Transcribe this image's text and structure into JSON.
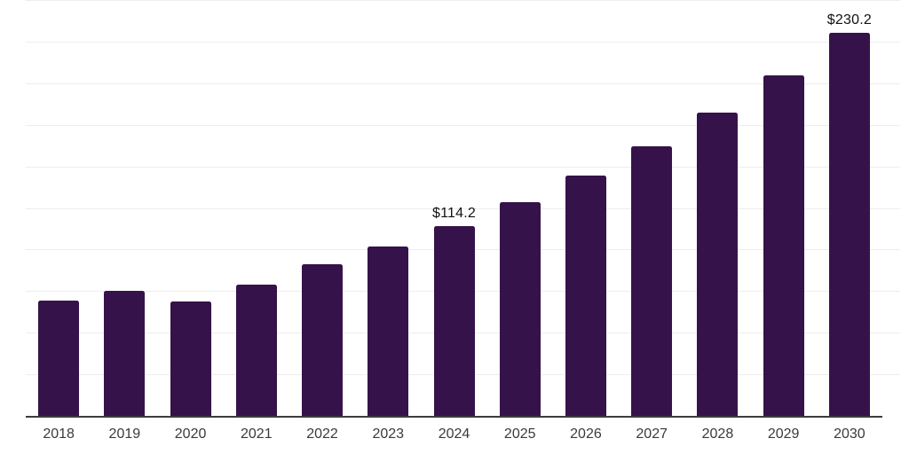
{
  "chart_data": {
    "type": "bar",
    "title": "",
    "xlabel": "",
    "ylabel": "",
    "categories": [
      "2018",
      "2019",
      "2020",
      "2021",
      "2022",
      "2023",
      "2024",
      "2025",
      "2026",
      "2027",
      "2028",
      "2029",
      "2030"
    ],
    "values": [
      69.3,
      75.0,
      68.8,
      79.1,
      91.0,
      101.7,
      114.2,
      128.4,
      144.3,
      162.2,
      182.3,
      204.9,
      230.2
    ],
    "data_labels": [
      {
        "category": "2024",
        "text": "$114.2"
      },
      {
        "category": "2030",
        "text": "$230.2"
      }
    ],
    "ylim": [
      0,
      250
    ],
    "grid_step": 25,
    "grid": "on",
    "legend": "none",
    "colors": {
      "bar": "#36124a",
      "gridline": "#ededed",
      "axis_line": "#3c3c3c",
      "tick_label": "#3a3a3a",
      "data_label": "#111111",
      "background": "#ffffff"
    }
  }
}
